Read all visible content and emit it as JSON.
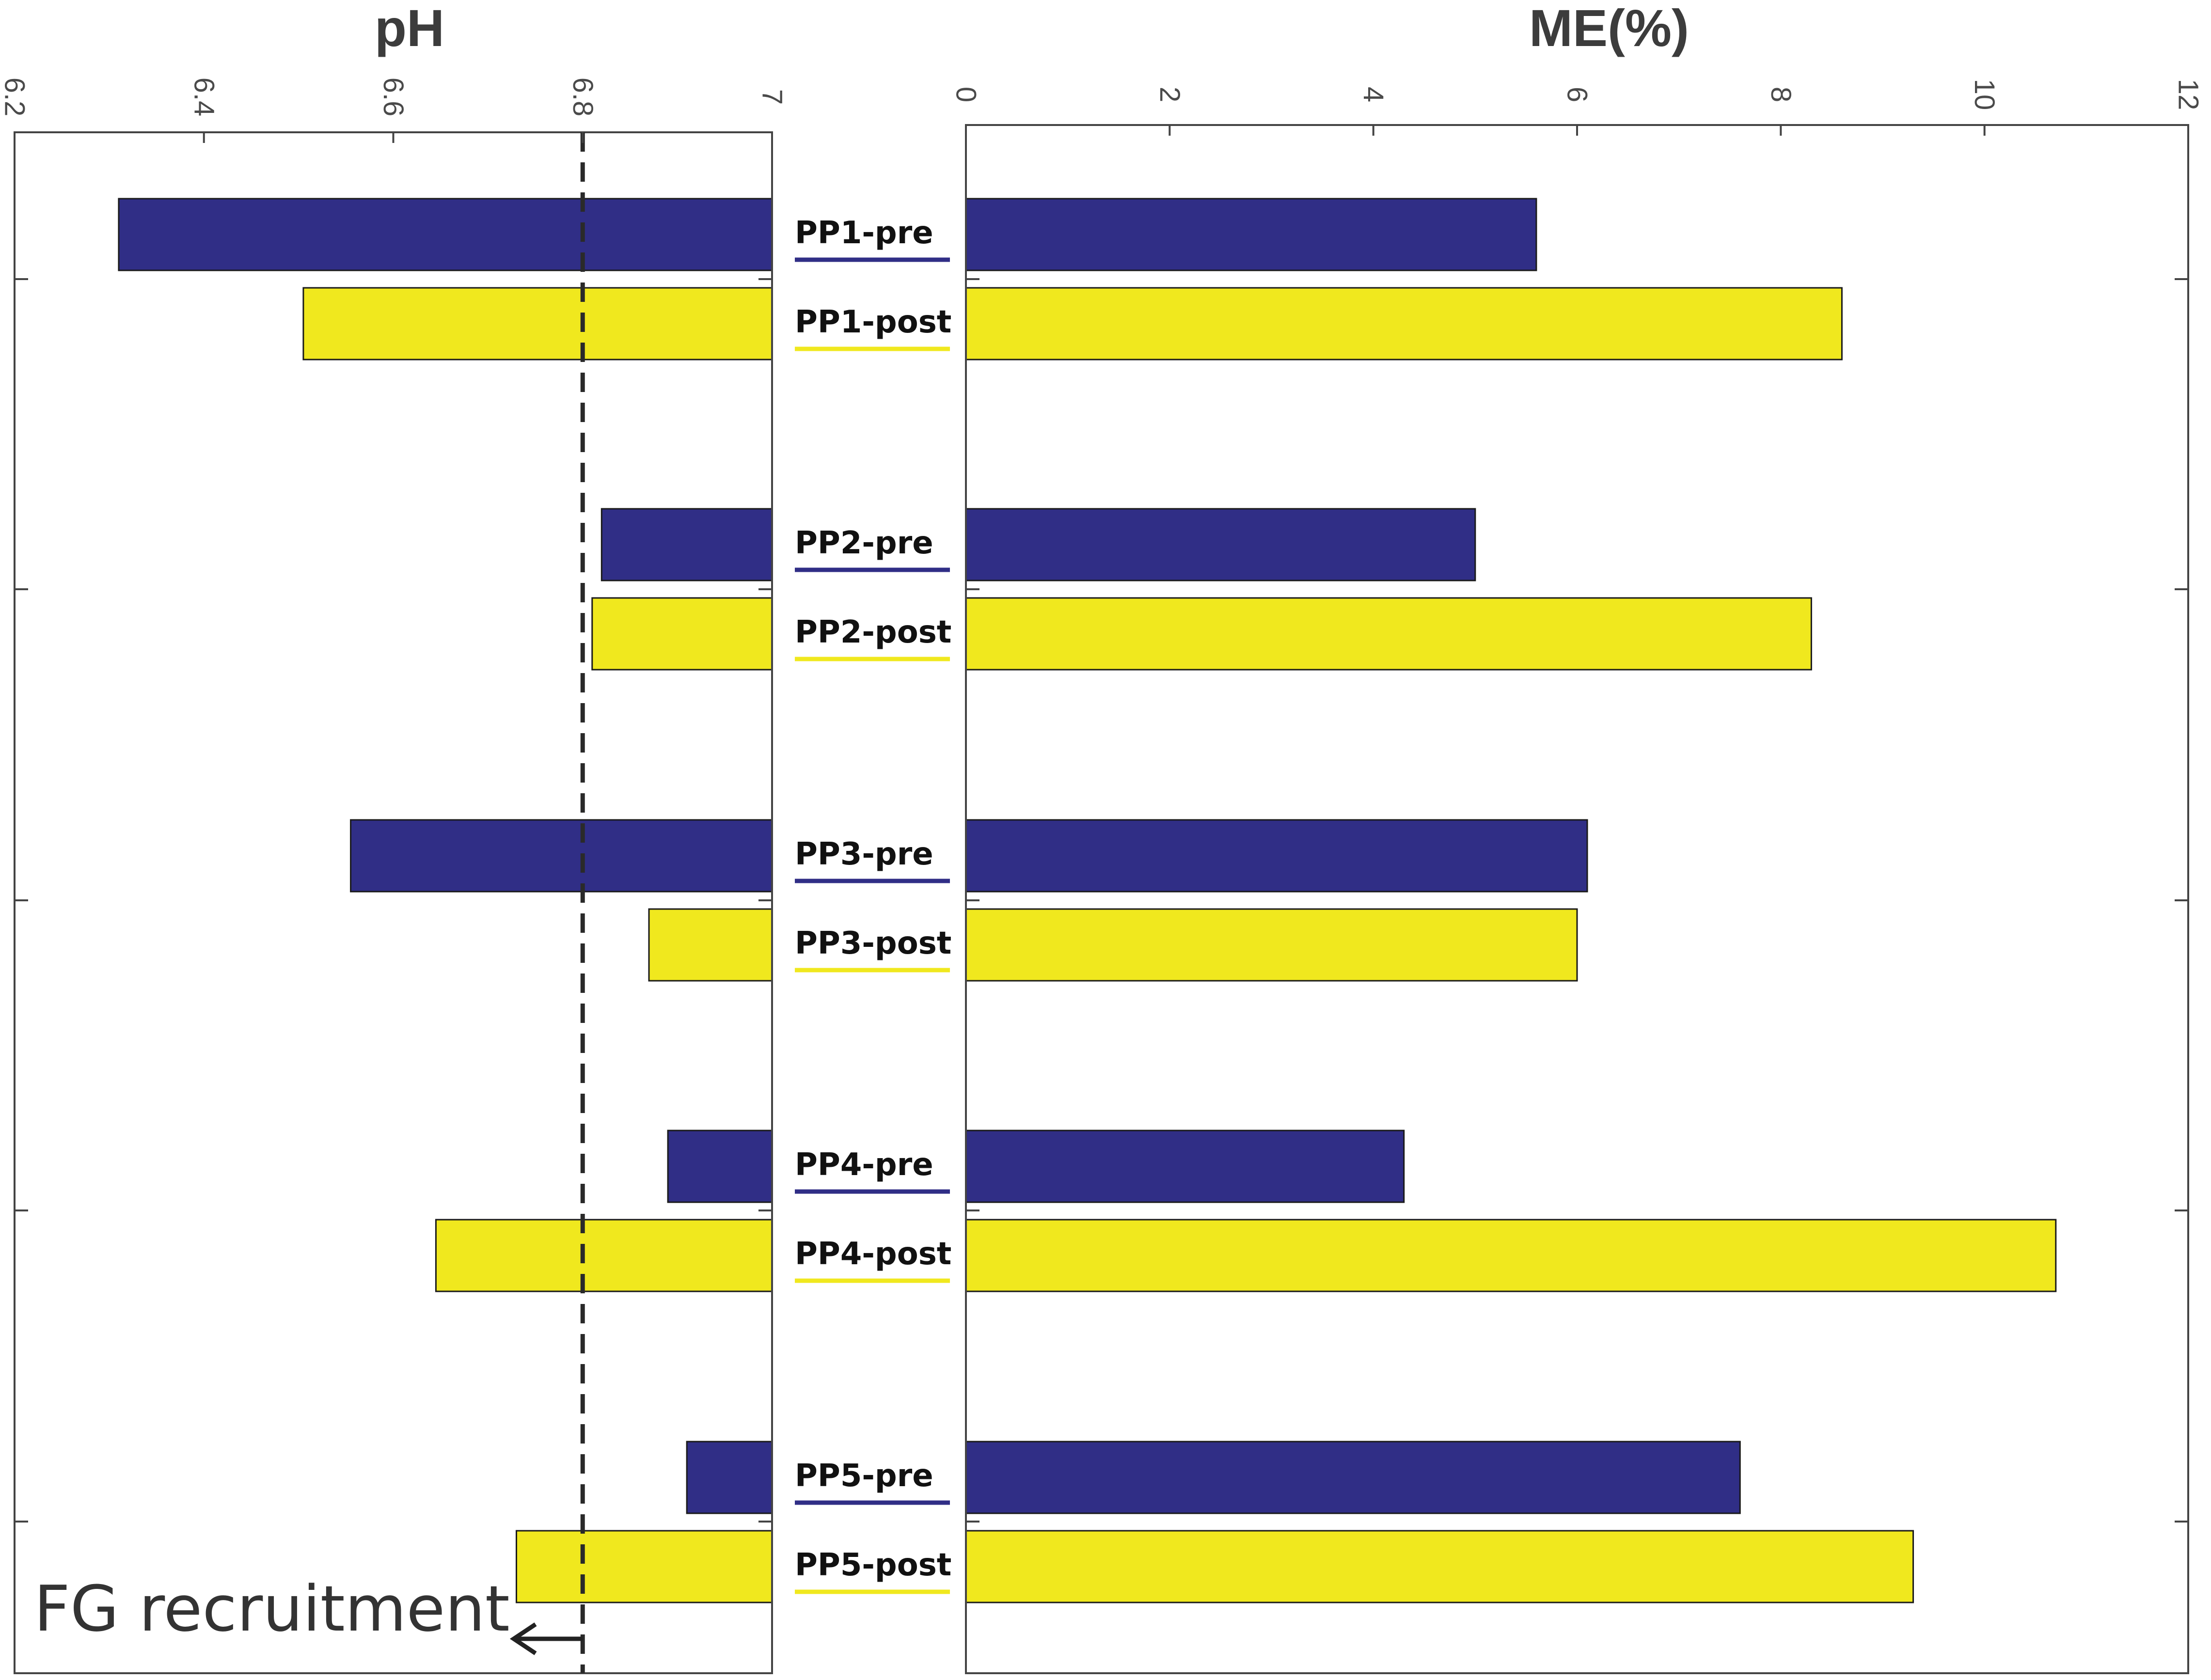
{
  "chart_data": [
    {
      "type": "bar",
      "orientation": "horizontal",
      "title": "pH",
      "xlim": [
        6.2,
        7
      ],
      "ticks": [
        "6.2",
        "6.4",
        "6.6",
        "6.8",
        "7"
      ],
      "tick_values": [
        6.2,
        6.4,
        6.6,
        6.8,
        7
      ],
      "reversed": true,
      "reference_line": 6.8,
      "annotation": "FG recruitment",
      "categories": [
        "PP1-pre",
        "PP1-post",
        "PP2-pre",
        "PP2-post",
        "PP3-pre",
        "PP3-post",
        "PP4-pre",
        "PP4-post",
        "PP5-pre",
        "PP5-post"
      ],
      "values": [
        6.31,
        6.505,
        6.82,
        6.81,
        6.555,
        6.87,
        6.89,
        6.645,
        6.91,
        6.73
      ],
      "colors": [
        "#302e86",
        "#f0e81e",
        "#302e86",
        "#f0e81e",
        "#302e86",
        "#f0e81e",
        "#302e86",
        "#f0e81e",
        "#302e86",
        "#f0e81e"
      ]
    },
    {
      "type": "bar",
      "orientation": "horizontal",
      "title": "ME(%)",
      "xlim": [
        0,
        12
      ],
      "ticks": [
        "0",
        "2",
        "4",
        "6",
        "8",
        "10",
        "12"
      ],
      "tick_values": [
        0,
        2,
        4,
        6,
        8,
        10,
        12
      ],
      "categories": [
        "PP1-pre",
        "PP1-post",
        "PP2-pre",
        "PP2-post",
        "PP3-pre",
        "PP3-post",
        "PP4-pre",
        "PP4-post",
        "PP5-pre",
        "PP5-post"
      ],
      "values": [
        5.6,
        8.6,
        5.0,
        8.3,
        6.1,
        6.0,
        4.3,
        10.7,
        7.6,
        9.3
      ],
      "colors": [
        "#302e86",
        "#f0e81e",
        "#302e86",
        "#f0e81e",
        "#302e86",
        "#f0e81e",
        "#302e86",
        "#f0e81e",
        "#302e86",
        "#f0e81e"
      ]
    }
  ],
  "colors": {
    "pre": "#302e86",
    "post": "#f0e81e",
    "axis": "#444444"
  }
}
